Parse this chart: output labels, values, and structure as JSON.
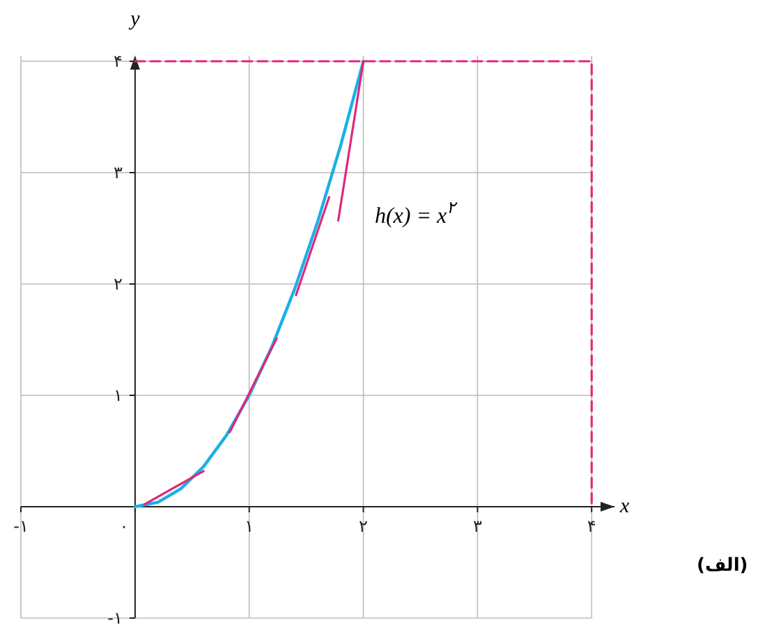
{
  "chart_data": {
    "type": "line",
    "xlabel": "x",
    "ylabel": "y",
    "xlim": [
      -1,
      4.2
    ],
    "ylim": [
      -1,
      4.05
    ],
    "xticks": [
      {
        "value": -1,
        "label": "-۱"
      },
      {
        "value": 0,
        "label": "۰"
      },
      {
        "value": 1,
        "label": "۱"
      },
      {
        "value": 2,
        "label": "۲"
      },
      {
        "value": 3,
        "label": "۳"
      },
      {
        "value": 4,
        "label": "۴"
      }
    ],
    "yticks": [
      {
        "value": -1,
        "label": "-۱"
      },
      {
        "value": 1,
        "label": "۱"
      },
      {
        "value": 2,
        "label": "۲"
      },
      {
        "value": 3,
        "label": "۳"
      },
      {
        "value": 4,
        "label": "۴"
      }
    ],
    "grid": true,
    "marker": "none",
    "series": [
      {
        "color": "#1ab0e8",
        "x": [
          0,
          0.2,
          0.4,
          0.6,
          0.8,
          1,
          1.2,
          1.4,
          1.6,
          1.8,
          2
        ],
        "values": [
          0,
          0.04,
          0.16,
          0.36,
          0.64,
          1,
          1.44,
          1.96,
          2.56,
          3.24,
          4
        ]
      },
      {
        "color": "#e0287a",
        "x": [
          0.08,
          0.6
        ],
        "values": [
          0.02,
          0.32
        ]
      },
      {
        "color": "#e0287a",
        "x": [
          0.83,
          1.24
        ],
        "values": [
          0.67,
          1.51
        ]
      },
      {
        "color": "#e0287a",
        "x": [
          1.41,
          1.7
        ],
        "values": [
          1.9,
          2.78
        ]
      },
      {
        "color": "#e0287a",
        "x": [
          1.78,
          2
        ],
        "values": [
          2.57,
          4
        ]
      },
      {
        "color": "#e0287a",
        "line_style": "dashed",
        "x": [
          0,
          4,
          4
        ],
        "values": [
          4,
          4,
          0
        ]
      }
    ],
    "annotations": [
      "h(x) = x$^{۲}$",
      "(الف)"
    ]
  }
}
